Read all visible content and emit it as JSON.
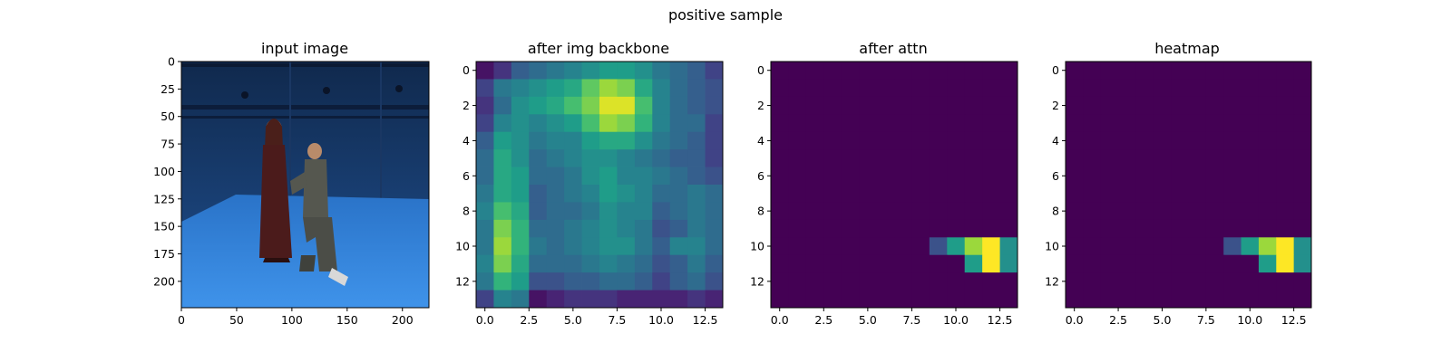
{
  "suptitle": "positive sample",
  "colors": {
    "bg_blue_top": "#1d3f6e",
    "bg_blue_floor": "#2f7fd8",
    "axes": "#000000",
    "viridis_low": "#440154",
    "viridis_high": "#fde725"
  },
  "chart_data": [
    {
      "type": "image",
      "title": "input image",
      "xlim": [
        0,
        224
      ],
      "ylim": [
        224,
        0
      ],
      "x_ticks": [
        0,
        50,
        100,
        150,
        200
      ],
      "y_ticks": [
        0,
        25,
        50,
        75,
        100,
        125,
        150,
        175,
        200
      ],
      "content": "photo of two people in a blue capture studio, one standing in a dark red dress and one kneeling"
    },
    {
      "type": "heatmap",
      "title": "after img backbone",
      "x_ticks": [
        "0.0",
        "2.5",
        "5.0",
        "7.5",
        "10.0",
        "12.5"
      ],
      "y_ticks": [
        "0",
        "2",
        "4",
        "6",
        "8",
        "10",
        "12"
      ],
      "rows": 14,
      "cols": 14,
      "values": [
        [
          0.05,
          0.15,
          0.3,
          0.35,
          0.4,
          0.45,
          0.5,
          0.55,
          0.55,
          0.5,
          0.4,
          0.35,
          0.3,
          0.2
        ],
        [
          0.2,
          0.4,
          0.45,
          0.5,
          0.55,
          0.6,
          0.75,
          0.85,
          0.8,
          0.6,
          0.45,
          0.35,
          0.3,
          0.25
        ],
        [
          0.15,
          0.35,
          0.5,
          0.55,
          0.6,
          0.7,
          0.8,
          0.95,
          0.95,
          0.7,
          0.45,
          0.35,
          0.3,
          0.25
        ],
        [
          0.2,
          0.45,
          0.5,
          0.45,
          0.5,
          0.55,
          0.7,
          0.85,
          0.8,
          0.65,
          0.45,
          0.35,
          0.35,
          0.2
        ],
        [
          0.3,
          0.55,
          0.5,
          0.4,
          0.45,
          0.45,
          0.55,
          0.6,
          0.6,
          0.5,
          0.4,
          0.35,
          0.3,
          0.2
        ],
        [
          0.35,
          0.6,
          0.5,
          0.35,
          0.4,
          0.45,
          0.5,
          0.5,
          0.45,
          0.4,
          0.35,
          0.3,
          0.3,
          0.2
        ],
        [
          0.35,
          0.6,
          0.55,
          0.35,
          0.35,
          0.4,
          0.5,
          0.55,
          0.45,
          0.45,
          0.4,
          0.35,
          0.3,
          0.25
        ],
        [
          0.4,
          0.6,
          0.55,
          0.3,
          0.35,
          0.4,
          0.45,
          0.55,
          0.5,
          0.45,
          0.35,
          0.35,
          0.4,
          0.35
        ],
        [
          0.45,
          0.7,
          0.6,
          0.3,
          0.35,
          0.35,
          0.4,
          0.5,
          0.45,
          0.45,
          0.3,
          0.35,
          0.4,
          0.35
        ],
        [
          0.4,
          0.8,
          0.65,
          0.35,
          0.35,
          0.4,
          0.45,
          0.5,
          0.45,
          0.4,
          0.25,
          0.3,
          0.4,
          0.35
        ],
        [
          0.4,
          0.85,
          0.65,
          0.4,
          0.35,
          0.4,
          0.45,
          0.5,
          0.5,
          0.4,
          0.3,
          0.45,
          0.45,
          0.35
        ],
        [
          0.45,
          0.8,
          0.6,
          0.35,
          0.35,
          0.35,
          0.4,
          0.45,
          0.4,
          0.35,
          0.25,
          0.3,
          0.4,
          0.3
        ],
        [
          0.4,
          0.65,
          0.55,
          0.25,
          0.25,
          0.3,
          0.3,
          0.35,
          0.35,
          0.3,
          0.2,
          0.3,
          0.35,
          0.25
        ],
        [
          0.2,
          0.45,
          0.4,
          0.05,
          0.1,
          0.15,
          0.15,
          0.15,
          0.1,
          0.1,
          0.1,
          0.1,
          0.15,
          0.1
        ]
      ]
    },
    {
      "type": "heatmap",
      "title": "after attn",
      "x_ticks": [
        "0.0",
        "2.5",
        "5.0",
        "7.5",
        "10.0",
        "12.5"
      ],
      "y_ticks": [
        "0",
        "2",
        "4",
        "6",
        "8",
        "10",
        "12"
      ],
      "rows": 14,
      "cols": 14,
      "hot_cells": [
        {
          "row": 10,
          "col": 9,
          "value": 0.25
        },
        {
          "row": 10,
          "col": 10,
          "value": 0.55
        },
        {
          "row": 10,
          "col": 11,
          "value": 0.85
        },
        {
          "row": 10,
          "col": 12,
          "value": 1.0
        },
        {
          "row": 10,
          "col": 13,
          "value": 0.5
        },
        {
          "row": 11,
          "col": 11,
          "value": 0.55
        },
        {
          "row": 11,
          "col": 12,
          "value": 1.0
        },
        {
          "row": 11,
          "col": 13,
          "value": 0.5
        }
      ]
    },
    {
      "type": "heatmap",
      "title": "heatmap",
      "x_ticks": [
        "0.0",
        "2.5",
        "5.0",
        "7.5",
        "10.0",
        "12.5"
      ],
      "y_ticks": [
        "0",
        "2",
        "4",
        "6",
        "8",
        "10",
        "12"
      ],
      "rows": 14,
      "cols": 14,
      "hot_cells": [
        {
          "row": 10,
          "col": 9,
          "value": 0.25
        },
        {
          "row": 10,
          "col": 10,
          "value": 0.55
        },
        {
          "row": 10,
          "col": 11,
          "value": 0.85
        },
        {
          "row": 10,
          "col": 12,
          "value": 1.0
        },
        {
          "row": 10,
          "col": 13,
          "value": 0.5
        },
        {
          "row": 11,
          "col": 11,
          "value": 0.55
        },
        {
          "row": 11,
          "col": 12,
          "value": 1.0
        },
        {
          "row": 11,
          "col": 13,
          "value": 0.5
        }
      ]
    }
  ]
}
